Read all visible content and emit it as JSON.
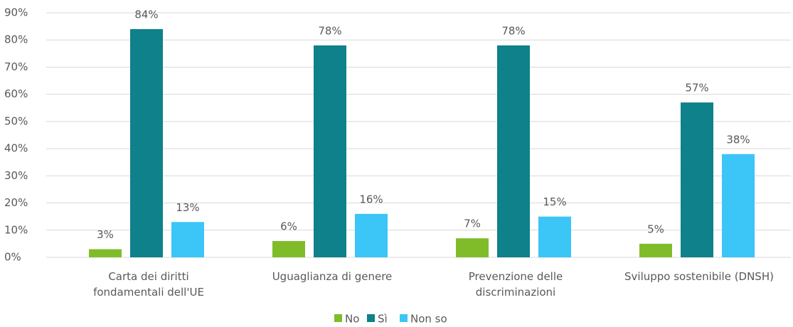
{
  "chart_data": {
    "type": "bar",
    "categories": [
      "Carta dei diritti\nfondamentali dell'UE",
      "Uguaglianza di genere",
      "Prevenzione delle\ndiscriminazioni",
      "Sviluppo sostenibile (DNSH)"
    ],
    "series": [
      {
        "name": "No",
        "color": "#80bc2a",
        "values": [
          3,
          6,
          7,
          5
        ],
        "value_labels": [
          "3%",
          "6%",
          "7%",
          "5%"
        ]
      },
      {
        "name": "Sì",
        "color": "#0e818a",
        "values": [
          84,
          78,
          78,
          57
        ],
        "value_labels": [
          "84%",
          "78%",
          "78%",
          "57%"
        ]
      },
      {
        "name": "Non so",
        "color": "#3cc5f7",
        "values": [
          13,
          16,
          15,
          38
        ],
        "value_labels": [
          "13%",
          "16%",
          "15%",
          "38%"
        ]
      }
    ],
    "ylim": [
      0,
      90
    ],
    "yticks": [
      {
        "value": 0,
        "label": "0%"
      },
      {
        "value": 10,
        "label": "10%"
      },
      {
        "value": 20,
        "label": "20%"
      },
      {
        "value": 30,
        "label": "30%"
      },
      {
        "value": 40,
        "label": "40%"
      },
      {
        "value": 50,
        "label": "50%"
      },
      {
        "value": 60,
        "label": "60%"
      },
      {
        "value": 70,
        "label": "70%"
      },
      {
        "value": 80,
        "label": "80%"
      },
      {
        "value": 90,
        "label": "90%"
      }
    ],
    "grid": true,
    "legend": "bottom"
  }
}
